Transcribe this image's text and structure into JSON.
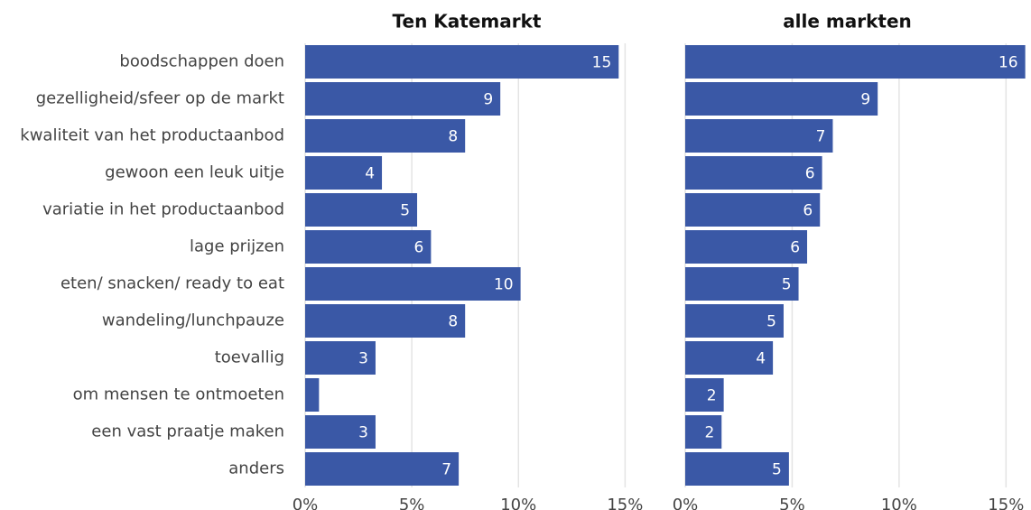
{
  "chart_data": [
    {
      "type": "bar",
      "orientation": "horizontal",
      "title": "Ten Katemarkt",
      "categories": [
        "boodschappen doen",
        "gezelligheid/sfeer op de markt",
        "kwaliteit van het productaanbod",
        "gewoon een leuk uitje",
        "variatie in het productaanbod",
        "lage prijzen",
        "eten/ snacken/ ready to eat",
        "wandeling/lunchpauze",
        "toevallig",
        "om mensen te ontmoeten",
        "een vast praatje maken",
        "anders"
      ],
      "values": [
        14.7,
        9.15,
        7.5,
        3.6,
        5.25,
        5.9,
        10.1,
        7.5,
        3.3,
        0.65,
        3.3,
        7.2
      ],
      "value_labels": [
        "15",
        "9",
        "8",
        "4",
        "5",
        "6",
        "10",
        "8",
        "3",
        null,
        "3",
        "7"
      ],
      "color": "#3a58a6",
      "grid": true,
      "xlim": [
        0,
        16
      ],
      "xticks": [
        {
          "value": 0,
          "label": "0%"
        },
        {
          "value": 5,
          "label": "5%"
        },
        {
          "value": 10,
          "label": "10%"
        },
        {
          "value": 15,
          "label": "15%"
        }
      ]
    },
    {
      "type": "bar",
      "orientation": "horizontal",
      "title": "alle markten",
      "values": [
        15.9,
        9.0,
        6.9,
        6.4,
        6.3,
        5.7,
        5.3,
        4.6,
        4.1,
        1.8,
        1.7,
        4.85
      ],
      "value_labels": [
        "16",
        "9",
        "7",
        "6",
        "6",
        "6",
        "5",
        "5",
        "4",
        "2",
        "2",
        "5"
      ],
      "color": "#3a58a6",
      "grid": true,
      "xlim": [
        0,
        16
      ],
      "xticks": [
        {
          "value": 0,
          "label": "0%"
        },
        {
          "value": 5,
          "label": "5%"
        },
        {
          "value": 10,
          "label": "10%"
        },
        {
          "value": 15,
          "label": "15%"
        }
      ]
    }
  ]
}
